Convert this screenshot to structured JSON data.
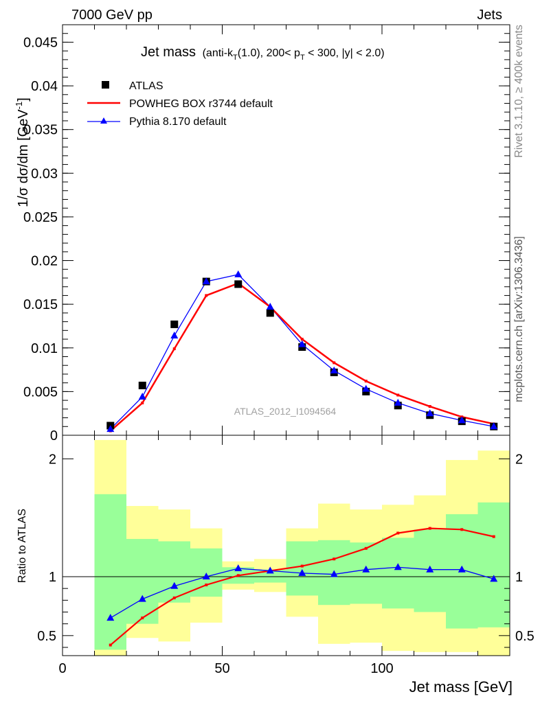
{
  "header": {
    "left": "7000 GeV pp",
    "right": "Jets",
    "side_top": "Rivet 3.1.10, ≥ 400k events",
    "side_bottom": "mcplots.cern.ch [arXiv:1306.3436]",
    "watermark": "ATLAS_2012_I1094564"
  },
  "chart_data": {
    "type": "line",
    "title": "Jet mass (anti-k_T(1.0), 200< p_T < 300, |y| < 2.0)",
    "title_parts": {
      "main": "Jet mass",
      "p1": "(anti-k",
      "sub1": "T",
      "p2": "(1.0), 200< p",
      "sub2": "T",
      "p3": " < 300, |y| < 2.0)"
    },
    "xlabel": "Jet mass [GeV]",
    "ylabel": "1/σ dσ/dm [GeV⁻¹]",
    "ylabel_parts": {
      "main": "1/σ dσ/dm [GeV",
      "sup": "-1",
      "close": "]"
    },
    "ratio_ylabel": "Ratio to ATLAS",
    "xlim": [
      0,
      140
    ],
    "ylim": [
      0,
      0.047
    ],
    "ratio_ylim": [
      0.33,
      2.2
    ],
    "x_ticks": [
      "0",
      "50",
      "100"
    ],
    "y_ticks": [
      "0",
      "0.005",
      "0.01",
      "0.015",
      "0.02",
      "0.025",
      "0.03",
      "0.035",
      "0.04",
      "0.045"
    ],
    "ratio_ticks": [
      "0.5",
      "1",
      "2"
    ],
    "legend_position": "top-left",
    "bins": [
      [
        10,
        20
      ],
      [
        20,
        30
      ],
      [
        30,
        40
      ],
      [
        40,
        50
      ],
      [
        50,
        60
      ],
      [
        60,
        70
      ],
      [
        70,
        80
      ],
      [
        80,
        90
      ],
      [
        90,
        100
      ],
      [
        100,
        110
      ],
      [
        110,
        120
      ],
      [
        120,
        130
      ],
      [
        130,
        140
      ]
    ],
    "x": [
      15,
      25,
      35,
      45,
      55,
      65,
      75,
      85,
      95,
      105,
      115,
      125,
      135
    ],
    "series": [
      {
        "name": "ATLAS",
        "color": "#000000",
        "marker": "square",
        "values": [
          0.0011,
          0.0057,
          0.0127,
          0.0176,
          0.0173,
          0.014,
          0.0101,
          0.0072,
          0.005,
          0.0034,
          0.0023,
          0.0016,
          0.001
        ]
      },
      {
        "name": "POWHEG BOX r3744 default",
        "color": "#ff0000",
        "marker": "dot",
        "values": [
          0.0005,
          0.0037,
          0.0099,
          0.016,
          0.0174,
          0.0147,
          0.011,
          0.0083,
          0.0062,
          0.0046,
          0.0033,
          0.0021,
          0.0013
        ]
      },
      {
        "name": "Pythia 8.170 default",
        "color": "#0000ff",
        "marker": "triangle",
        "values": [
          0.0007,
          0.0044,
          0.0114,
          0.0176,
          0.0184,
          0.0147,
          0.0104,
          0.0074,
          0.0053,
          0.0037,
          0.0025,
          0.0017,
          0.001
        ]
      }
    ],
    "ratio_series": [
      {
        "name": "POWHEG BOX r3744 default",
        "color": "#ff0000",
        "marker": "dot",
        "values": [
          0.42,
          0.65,
          0.82,
          0.93,
          1.01,
          1.05,
          1.09,
          1.15,
          1.24,
          1.37,
          1.41,
          1.4,
          1.34
        ]
      },
      {
        "name": "Pythia 8.170 default",
        "color": "#0000ff",
        "marker": "triangle",
        "values": [
          0.65,
          0.81,
          0.92,
          1.0,
          1.07,
          1.05,
          1.03,
          1.02,
          1.06,
          1.08,
          1.06,
          1.06,
          0.98
        ]
      }
    ],
    "ratio_band_inner": [
      [
        0.38,
        1.7
      ],
      [
        0.6,
        1.32
      ],
      [
        0.78,
        1.3
      ],
      [
        0.83,
        1.24
      ],
      [
        0.94,
        1.08
      ],
      [
        0.95,
        1.06
      ],
      [
        0.84,
        1.3
      ],
      [
        0.76,
        1.31
      ],
      [
        0.77,
        1.29
      ],
      [
        0.73,
        1.33
      ],
      [
        0.7,
        1.4
      ],
      [
        0.56,
        1.53
      ],
      [
        0.57,
        1.63
      ]
    ],
    "ratio_band_outer": [
      [
        0.33,
        2.16
      ],
      [
        0.48,
        1.6
      ],
      [
        0.45,
        1.57
      ],
      [
        0.61,
        1.41
      ],
      [
        0.89,
        1.13
      ],
      [
        0.87,
        1.15
      ],
      [
        0.66,
        1.41
      ],
      [
        0.43,
        1.62
      ],
      [
        0.44,
        1.57
      ],
      [
        0.37,
        1.61
      ],
      [
        0.36,
        1.69
      ],
      [
        0.36,
        1.99
      ],
      [
        0.33,
        2.07
      ]
    ],
    "ratio_reference": 1,
    "colors": {
      "inner_band": "#99ff99",
      "outer_band": "#ffff99"
    }
  }
}
